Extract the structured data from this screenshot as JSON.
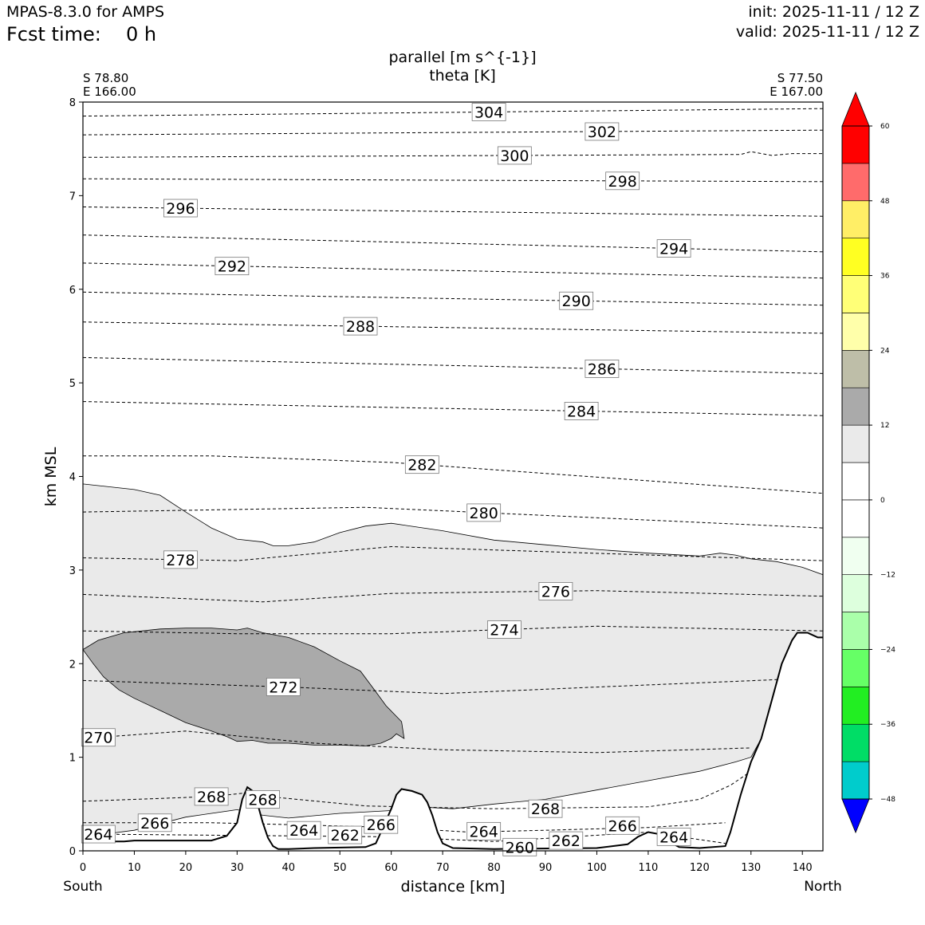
{
  "header": {
    "model": "MPAS-8.3.0 for AMPS",
    "fcst_label": "Fcst time:",
    "fcst_value": "0 h",
    "init": "init: 2025-11-11 / 12 Z",
    "valid": "valid: 2025-11-11 / 12 Z"
  },
  "chart_data": {
    "type": "cross-section",
    "title_line1": "parallel [m s^{-1}]",
    "title_line2": "theta [K]",
    "xlabel": "distance [km]",
    "ylabel": "km MSL",
    "xlim": [
      0,
      144
    ],
    "ylim": [
      0,
      8
    ],
    "xticks": [
      0,
      10,
      20,
      30,
      40,
      50,
      60,
      70,
      80,
      90,
      100,
      110,
      120,
      130,
      140
    ],
    "yticks": [
      0,
      1,
      2,
      3,
      4,
      5,
      6,
      7,
      8
    ],
    "left_end": {
      "lat": "S 78.80",
      "lon": "E 166.00",
      "dir": "South"
    },
    "right_end": {
      "lat": "S 77.50",
      "lon": "E 167.00",
      "dir": "North"
    },
    "terrain": [
      [
        0,
        0.1
      ],
      [
        8,
        0.1
      ],
      [
        10,
        0.11
      ],
      [
        25,
        0.11
      ],
      [
        28,
        0.16
      ],
      [
        30,
        0.3
      ],
      [
        31,
        0.55
      ],
      [
        32,
        0.68
      ],
      [
        33,
        0.64
      ],
      [
        34,
        0.5
      ],
      [
        35,
        0.3
      ],
      [
        36,
        0.14
      ],
      [
        37,
        0.05
      ],
      [
        38,
        0.02
      ],
      [
        40,
        0.02
      ],
      [
        45,
        0.03
      ],
      [
        55,
        0.04
      ],
      [
        57,
        0.08
      ],
      [
        58,
        0.2
      ],
      [
        60,
        0.45
      ],
      [
        61,
        0.6
      ],
      [
        62,
        0.66
      ],
      [
        64,
        0.64
      ],
      [
        66,
        0.6
      ],
      [
        67,
        0.52
      ],
      [
        68,
        0.38
      ],
      [
        69,
        0.2
      ],
      [
        70,
        0.08
      ],
      [
        72,
        0.03
      ],
      [
        80,
        0.02
      ],
      [
        100,
        0.03
      ],
      [
        106,
        0.07
      ],
      [
        108,
        0.15
      ],
      [
        110,
        0.2
      ],
      [
        112,
        0.18
      ],
      [
        114,
        0.1
      ],
      [
        116,
        0.04
      ],
      [
        120,
        0.03
      ],
      [
        125,
        0.05
      ],
      [
        126,
        0.2
      ],
      [
        128,
        0.6
      ],
      [
        130,
        0.95
      ],
      [
        132,
        1.2
      ],
      [
        134,
        1.6
      ],
      [
        136,
        2.0
      ],
      [
        138,
        2.25
      ],
      [
        139,
        2.33
      ],
      [
        141,
        2.33
      ],
      [
        143,
        2.28
      ],
      [
        144,
        2.28
      ]
    ],
    "shading_levels": [
      -48,
      -42,
      -36,
      -30,
      -24,
      -18,
      -12,
      -6,
      0,
      6,
      12,
      18,
      24,
      30,
      36,
      42,
      48,
      54,
      60
    ],
    "shading_colors": [
      "#0000ff",
      "#00cccc",
      "#00dd66",
      "#22ee22",
      "#66ff66",
      "#aaffaa",
      "#ddffdd",
      "#f0fff0",
      "#ffffff",
      "#ffffff",
      "#eaeaea",
      "#aaaaaa",
      "#bebea8",
      "#ffffaa",
      "#ffff77",
      "#ffff22",
      "#ffee66",
      "#ff6b6b",
      "#ff0000"
    ],
    "colorbar_ticks": [
      "60",
      "48",
      "36",
      "24",
      "12",
      "0",
      "−12",
      "−24",
      "−36",
      "−48"
    ],
    "shaded_regions": [
      {
        "level": "6-12 m/s",
        "color": "#eaeaea",
        "outline": [
          [
            0,
            3.92
          ],
          [
            10,
            3.86
          ],
          [
            15,
            3.8
          ],
          [
            20,
            3.62
          ],
          [
            25,
            3.45
          ],
          [
            30,
            3.33
          ],
          [
            35,
            3.3
          ],
          [
            37,
            3.26
          ],
          [
            40,
            3.26
          ],
          [
            45,
            3.3
          ],
          [
            50,
            3.4
          ],
          [
            55,
            3.47
          ],
          [
            60,
            3.5
          ],
          [
            70,
            3.42
          ],
          [
            80,
            3.32
          ],
          [
            90,
            3.27
          ],
          [
            100,
            3.22
          ],
          [
            110,
            3.18
          ],
          [
            120,
            3.15
          ],
          [
            124,
            3.18
          ],
          [
            127,
            3.16
          ],
          [
            130,
            3.12
          ],
          [
            135,
            3.09
          ],
          [
            140,
            3.03
          ],
          [
            144,
            2.95
          ],
          [
            144,
            2.28
          ],
          [
            143,
            2.28
          ],
          [
            141,
            2.33
          ],
          [
            139,
            2.33
          ],
          [
            138,
            2.25
          ],
          [
            136,
            2.0
          ],
          [
            134,
            1.6
          ],
          [
            132,
            1.2
          ],
          [
            130,
            1.0
          ],
          [
            127,
            0.95
          ],
          [
            120,
            0.85
          ],
          [
            110,
            0.75
          ],
          [
            100,
            0.65
          ],
          [
            90,
            0.55
          ],
          [
            80,
            0.5
          ],
          [
            72,
            0.45
          ],
          [
            65,
            0.47
          ],
          [
            60,
            0.43
          ],
          [
            50,
            0.4
          ],
          [
            40,
            0.35
          ],
          [
            35,
            0.38
          ],
          [
            30,
            0.44
          ],
          [
            20,
            0.36
          ],
          [
            10,
            0.22
          ],
          [
            0,
            0.15
          ]
        ]
      },
      {
        "level": "12-18 m/s",
        "color": "#aaaaaa",
        "outline": [
          [
            0,
            2.15
          ],
          [
            3,
            2.25
          ],
          [
            8,
            2.33
          ],
          [
            15,
            2.37
          ],
          [
            20,
            2.38
          ],
          [
            25,
            2.38
          ],
          [
            30,
            2.36
          ],
          [
            32,
            2.38
          ],
          [
            35,
            2.33
          ],
          [
            40,
            2.28
          ],
          [
            45,
            2.18
          ],
          [
            50,
            2.03
          ],
          [
            54,
            1.92
          ],
          [
            57,
            1.7
          ],
          [
            59,
            1.55
          ],
          [
            62,
            1.38
          ],
          [
            62.5,
            1.2
          ],
          [
            61,
            1.25
          ],
          [
            60,
            1.2
          ],
          [
            58,
            1.15
          ],
          [
            55,
            1.12
          ],
          [
            50,
            1.13
          ],
          [
            45,
            1.13
          ],
          [
            40,
            1.15
          ],
          [
            36,
            1.15
          ],
          [
            33,
            1.18
          ],
          [
            30,
            1.17
          ],
          [
            28,
            1.22
          ],
          [
            25,
            1.28
          ],
          [
            20,
            1.37
          ],
          [
            15,
            1.5
          ],
          [
            10,
            1.63
          ],
          [
            7,
            1.72
          ],
          [
            4,
            1.86
          ],
          [
            2,
            2.0
          ],
          [
            0,
            2.15
          ]
        ]
      }
    ],
    "theta_contours": [
      {
        "value": 304,
        "label": 304,
        "label_x": 79,
        "y": [
          [
            0,
            7.85
          ],
          [
            144,
            7.93
          ]
        ]
      },
      {
        "value": 302,
        "label": 302,
        "label_x": 101,
        "y": [
          [
            0,
            7.65
          ],
          [
            144,
            7.7
          ]
        ]
      },
      {
        "value": 300,
        "label": 300,
        "label_x": 84,
        "y": [
          [
            0,
            7.41
          ],
          [
            128,
            7.44
          ],
          [
            130,
            7.47
          ],
          [
            134,
            7.43
          ],
          [
            138,
            7.45
          ],
          [
            144,
            7.45
          ]
        ]
      },
      {
        "value": 298,
        "label": 298,
        "label_x": 105,
        "y": [
          [
            0,
            7.18
          ],
          [
            144,
            7.15
          ]
        ]
      },
      {
        "value": 296,
        "label": 296,
        "label_x": 19,
        "y": [
          [
            0,
            6.88
          ],
          [
            144,
            6.78
          ]
        ]
      },
      {
        "value": 294,
        "label": 294,
        "label_x": 115,
        "y": [
          [
            0,
            6.58
          ],
          [
            144,
            6.4
          ]
        ]
      },
      {
        "value": 292,
        "label": 292,
        "label_x": 29,
        "y": [
          [
            0,
            6.28
          ],
          [
            144,
            6.12
          ]
        ]
      },
      {
        "value": 290,
        "label": 290,
        "label_x": 96,
        "y": [
          [
            0,
            5.97
          ],
          [
            144,
            5.83
          ]
        ]
      },
      {
        "value": 288,
        "label": 288,
        "label_x": 54,
        "y": [
          [
            0,
            5.65
          ],
          [
            144,
            5.53
          ]
        ]
      },
      {
        "value": 286,
        "label": 286,
        "label_x": 101,
        "y": [
          [
            0,
            5.27
          ],
          [
            144,
            5.1
          ]
        ]
      },
      {
        "value": 284,
        "label": 284,
        "label_x": 97,
        "y": [
          [
            0,
            4.8
          ],
          [
            144,
            4.65
          ]
        ]
      },
      {
        "value": 282,
        "label": 282,
        "label_x": 66,
        "y": [
          [
            0,
            4.22
          ],
          [
            25,
            4.22
          ],
          [
            60,
            4.15
          ],
          [
            144,
            3.82
          ]
        ]
      },
      {
        "value": 280,
        "label": 280,
        "label_x": 78,
        "y": [
          [
            0,
            3.62
          ],
          [
            55,
            3.67
          ],
          [
            144,
            3.45
          ]
        ]
      },
      {
        "value": 278,
        "label": 278,
        "label_x": 19,
        "y": [
          [
            0,
            3.13
          ],
          [
            30,
            3.1
          ],
          [
            60,
            3.25
          ],
          [
            144,
            3.1
          ]
        ]
      },
      {
        "value": 276,
        "label": 276,
        "label_x": 92,
        "y": [
          [
            0,
            2.74
          ],
          [
            35,
            2.66
          ],
          [
            60,
            2.75
          ],
          [
            100,
            2.78
          ],
          [
            144,
            2.72
          ]
        ]
      },
      {
        "value": 274,
        "label": 274,
        "label_x": 82,
        "y": [
          [
            0,
            2.35
          ],
          [
            30,
            2.32
          ],
          [
            60,
            2.32
          ],
          [
            100,
            2.4
          ],
          [
            144,
            2.35
          ]
        ]
      },
      {
        "value": 272,
        "label": 272,
        "label_x": 39,
        "y": [
          [
            0,
            1.82
          ],
          [
            40,
            1.75
          ],
          [
            70,
            1.68
          ],
          [
            100,
            1.75
          ],
          [
            140,
            1.84
          ]
        ]
      },
      {
        "value": 270,
        "label": 270,
        "label_x": 3,
        "y": [
          [
            0,
            1.2
          ],
          [
            20,
            1.28
          ],
          [
            45,
            1.15
          ],
          [
            70,
            1.08
          ],
          [
            100,
            1.05
          ],
          [
            130,
            1.1
          ]
        ]
      },
      {
        "value": 268,
        "label": 268,
        "label_x": 25,
        "y": [
          [
            0,
            0.53
          ],
          [
            25,
            0.58
          ],
          [
            32,
            0.62
          ],
          [
            36,
            0.58
          ],
          [
            55,
            0.48
          ],
          [
            80,
            0.45
          ],
          [
            110,
            0.47
          ],
          [
            120,
            0.55
          ],
          [
            126,
            0.7
          ],
          [
            130,
            0.85
          ]
        ]
      },
      {
        "value": 266,
        "label": 266,
        "label_x": 14,
        "y": [
          [
            0,
            0.3
          ],
          [
            25,
            0.3
          ],
          [
            40,
            0.28
          ],
          [
            60,
            0.25
          ],
          [
            75,
            0.2
          ],
          [
            90,
            0.22
          ],
          [
            110,
            0.25
          ],
          [
            125,
            0.3
          ]
        ]
      },
      {
        "value": 264,
        "label": 264,
        "label_x": 3,
        "y": [
          [
            0,
            0.18
          ],
          [
            60,
            0.15
          ],
          [
            80,
            0.1
          ],
          [
            110,
            0.2
          ],
          [
            125,
            0.08
          ]
        ]
      }
    ],
    "extra_labels": [
      {
        "text": "268",
        "x": 35,
        "y": 0.55
      },
      {
        "text": "264",
        "x": 43,
        "y": 0.22
      },
      {
        "text": "262",
        "x": 51,
        "y": 0.17
      },
      {
        "text": "266",
        "x": 58,
        "y": 0.28
      },
      {
        "text": "264",
        "x": 78,
        "y": 0.21
      },
      {
        "text": "260",
        "x": 85,
        "y": 0.04
      },
      {
        "text": "262",
        "x": 94,
        "y": 0.11
      },
      {
        "text": "268",
        "x": 90,
        "y": 0.45
      },
      {
        "text": "266",
        "x": 105,
        "y": 0.27
      },
      {
        "text": "264",
        "x": 115,
        "y": 0.15
      }
    ]
  }
}
